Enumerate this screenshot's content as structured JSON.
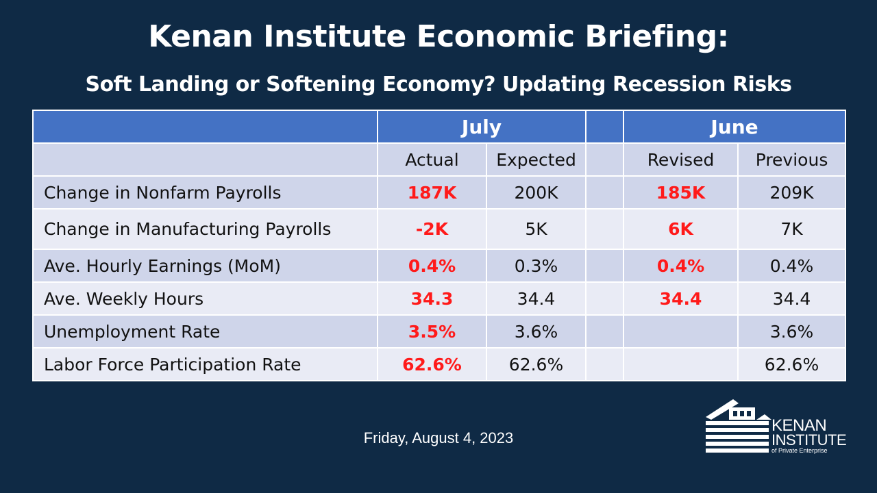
{
  "slide": {
    "title": "Kenan Institute Economic Briefing:",
    "subtitle": "Soft Landing or Softening Economy? Updating Recession Risks",
    "date": "Friday, August 4, 2023"
  },
  "table": {
    "groups": {
      "july": "July",
      "june": "June"
    },
    "columns": {
      "actual": "Actual",
      "expected": "Expected",
      "revised": "Revised",
      "previous": "Previous"
    },
    "rows": [
      {
        "label": "Change in Nonfarm Payrolls",
        "actual": "187K",
        "expected": "200K",
        "revised": "185K",
        "previous": "209K"
      },
      {
        "label": "Change in Manufacturing Payrolls",
        "actual": "-2K",
        "expected": "5K",
        "revised": "6K",
        "previous": "7K"
      },
      {
        "label": "Ave. Hourly Earnings (MoM)",
        "actual": "0.4%",
        "expected": "0.3%",
        "revised": "0.4%",
        "previous": "0.4%"
      },
      {
        "label": "Ave. Weekly Hours",
        "actual": "34.3",
        "expected": "34.4",
        "revised": "34.4",
        "previous": "34.4"
      },
      {
        "label": "Unemployment Rate",
        "actual": "3.5%",
        "expected": "3.6%",
        "revised": "",
        "previous": "3.6%"
      },
      {
        "label": "Labor Force Participation Rate",
        "actual": "62.6%",
        "expected": "62.6%",
        "revised": "",
        "previous": "62.6%"
      }
    ]
  },
  "logo": {
    "name": "KENAN",
    "institute": "INSTITUTE",
    "tagline": "of Private Enterprise"
  },
  "colors": {
    "background": "#0f2a45",
    "header_blue": "#4472c4",
    "band_dark": "#cfd5ea",
    "band_light": "#e9ebf5",
    "highlight_red": "#ff1a1a"
  }
}
